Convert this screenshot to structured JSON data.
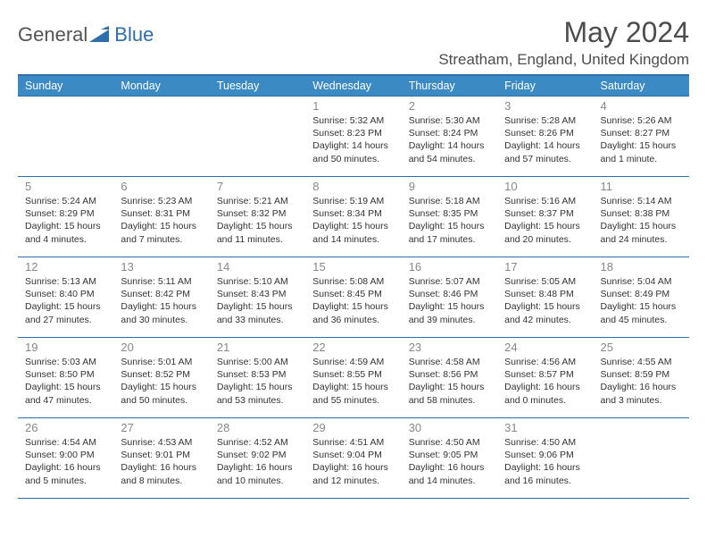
{
  "brand": {
    "text1": "General",
    "text2": "Blue",
    "accent_color": "#2f6ea8",
    "text_color": "#545454"
  },
  "title": "May 2024",
  "location": "Streatham, England, United Kingdom",
  "header_bg": "#3b8ac4",
  "header_border": "#2f6ea8",
  "row_border": "#2f6ea8",
  "text_color": "#333333",
  "daynum_color": "#888888",
  "font_family": "Arial, Helvetica, sans-serif",
  "detail_fontsize": 10.5,
  "header_fontsize": 12.5,
  "title_fontsize": 32,
  "location_fontsize": 17,
  "days_of_week": [
    "Sunday",
    "Monday",
    "Tuesday",
    "Wednesday",
    "Thursday",
    "Friday",
    "Saturday"
  ],
  "weeks": [
    [
      null,
      null,
      null,
      {
        "n": "1",
        "sunrise": "Sunrise: 5:32 AM",
        "sunset": "Sunset: 8:23 PM",
        "daylight": "Daylight: 14 hours and 50 minutes."
      },
      {
        "n": "2",
        "sunrise": "Sunrise: 5:30 AM",
        "sunset": "Sunset: 8:24 PM",
        "daylight": "Daylight: 14 hours and 54 minutes."
      },
      {
        "n": "3",
        "sunrise": "Sunrise: 5:28 AM",
        "sunset": "Sunset: 8:26 PM",
        "daylight": "Daylight: 14 hours and 57 minutes."
      },
      {
        "n": "4",
        "sunrise": "Sunrise: 5:26 AM",
        "sunset": "Sunset: 8:27 PM",
        "daylight": "Daylight: 15 hours and 1 minute."
      }
    ],
    [
      {
        "n": "5",
        "sunrise": "Sunrise: 5:24 AM",
        "sunset": "Sunset: 8:29 PM",
        "daylight": "Daylight: 15 hours and 4 minutes."
      },
      {
        "n": "6",
        "sunrise": "Sunrise: 5:23 AM",
        "sunset": "Sunset: 8:31 PM",
        "daylight": "Daylight: 15 hours and 7 minutes."
      },
      {
        "n": "7",
        "sunrise": "Sunrise: 5:21 AM",
        "sunset": "Sunset: 8:32 PM",
        "daylight": "Daylight: 15 hours and 11 minutes."
      },
      {
        "n": "8",
        "sunrise": "Sunrise: 5:19 AM",
        "sunset": "Sunset: 8:34 PM",
        "daylight": "Daylight: 15 hours and 14 minutes."
      },
      {
        "n": "9",
        "sunrise": "Sunrise: 5:18 AM",
        "sunset": "Sunset: 8:35 PM",
        "daylight": "Daylight: 15 hours and 17 minutes."
      },
      {
        "n": "10",
        "sunrise": "Sunrise: 5:16 AM",
        "sunset": "Sunset: 8:37 PM",
        "daylight": "Daylight: 15 hours and 20 minutes."
      },
      {
        "n": "11",
        "sunrise": "Sunrise: 5:14 AM",
        "sunset": "Sunset: 8:38 PM",
        "daylight": "Daylight: 15 hours and 24 minutes."
      }
    ],
    [
      {
        "n": "12",
        "sunrise": "Sunrise: 5:13 AM",
        "sunset": "Sunset: 8:40 PM",
        "daylight": "Daylight: 15 hours and 27 minutes."
      },
      {
        "n": "13",
        "sunrise": "Sunrise: 5:11 AM",
        "sunset": "Sunset: 8:42 PM",
        "daylight": "Daylight: 15 hours and 30 minutes."
      },
      {
        "n": "14",
        "sunrise": "Sunrise: 5:10 AM",
        "sunset": "Sunset: 8:43 PM",
        "daylight": "Daylight: 15 hours and 33 minutes."
      },
      {
        "n": "15",
        "sunrise": "Sunrise: 5:08 AM",
        "sunset": "Sunset: 8:45 PM",
        "daylight": "Daylight: 15 hours and 36 minutes."
      },
      {
        "n": "16",
        "sunrise": "Sunrise: 5:07 AM",
        "sunset": "Sunset: 8:46 PM",
        "daylight": "Daylight: 15 hours and 39 minutes."
      },
      {
        "n": "17",
        "sunrise": "Sunrise: 5:05 AM",
        "sunset": "Sunset: 8:48 PM",
        "daylight": "Daylight: 15 hours and 42 minutes."
      },
      {
        "n": "18",
        "sunrise": "Sunrise: 5:04 AM",
        "sunset": "Sunset: 8:49 PM",
        "daylight": "Daylight: 15 hours and 45 minutes."
      }
    ],
    [
      {
        "n": "19",
        "sunrise": "Sunrise: 5:03 AM",
        "sunset": "Sunset: 8:50 PM",
        "daylight": "Daylight: 15 hours and 47 minutes."
      },
      {
        "n": "20",
        "sunrise": "Sunrise: 5:01 AM",
        "sunset": "Sunset: 8:52 PM",
        "daylight": "Daylight: 15 hours and 50 minutes."
      },
      {
        "n": "21",
        "sunrise": "Sunrise: 5:00 AM",
        "sunset": "Sunset: 8:53 PM",
        "daylight": "Daylight: 15 hours and 53 minutes."
      },
      {
        "n": "22",
        "sunrise": "Sunrise: 4:59 AM",
        "sunset": "Sunset: 8:55 PM",
        "daylight": "Daylight: 15 hours and 55 minutes."
      },
      {
        "n": "23",
        "sunrise": "Sunrise: 4:58 AM",
        "sunset": "Sunset: 8:56 PM",
        "daylight": "Daylight: 15 hours and 58 minutes."
      },
      {
        "n": "24",
        "sunrise": "Sunrise: 4:56 AM",
        "sunset": "Sunset: 8:57 PM",
        "daylight": "Daylight: 16 hours and 0 minutes."
      },
      {
        "n": "25",
        "sunrise": "Sunrise: 4:55 AM",
        "sunset": "Sunset: 8:59 PM",
        "daylight": "Daylight: 16 hours and 3 minutes."
      }
    ],
    [
      {
        "n": "26",
        "sunrise": "Sunrise: 4:54 AM",
        "sunset": "Sunset: 9:00 PM",
        "daylight": "Daylight: 16 hours and 5 minutes."
      },
      {
        "n": "27",
        "sunrise": "Sunrise: 4:53 AM",
        "sunset": "Sunset: 9:01 PM",
        "daylight": "Daylight: 16 hours and 8 minutes."
      },
      {
        "n": "28",
        "sunrise": "Sunrise: 4:52 AM",
        "sunset": "Sunset: 9:02 PM",
        "daylight": "Daylight: 16 hours and 10 minutes."
      },
      {
        "n": "29",
        "sunrise": "Sunrise: 4:51 AM",
        "sunset": "Sunset: 9:04 PM",
        "daylight": "Daylight: 16 hours and 12 minutes."
      },
      {
        "n": "30",
        "sunrise": "Sunrise: 4:50 AM",
        "sunset": "Sunset: 9:05 PM",
        "daylight": "Daylight: 16 hours and 14 minutes."
      },
      {
        "n": "31",
        "sunrise": "Sunrise: 4:50 AM",
        "sunset": "Sunset: 9:06 PM",
        "daylight": "Daylight: 16 hours and 16 minutes."
      },
      null
    ]
  ]
}
